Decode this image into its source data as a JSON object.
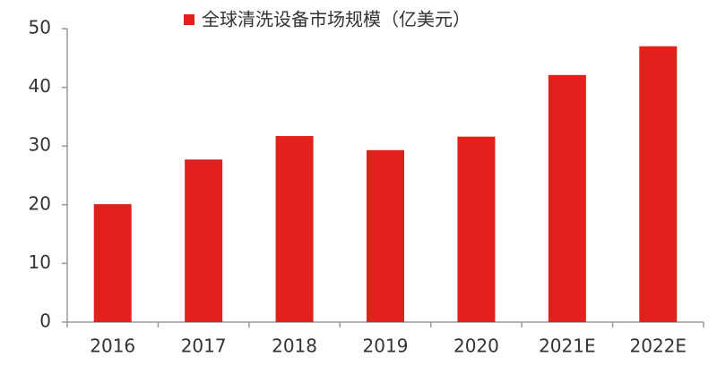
{
  "chart_data": {
    "type": "bar",
    "categories": [
      "2016",
      "2017",
      "2018",
      "2019",
      "2020",
      "2021E",
      "2022E"
    ],
    "series": [
      {
        "name": "全球清洗设备市场规模（亿美元）",
        "color": "#e2201c",
        "values": [
          20.1,
          27.7,
          31.7,
          29.3,
          31.6,
          42.1,
          47.0
        ]
      }
    ],
    "ylim": [
      0,
      50
    ],
    "yticks": [
      0,
      10,
      20,
      30,
      40,
      50
    ],
    "grid": false,
    "legend": "top"
  }
}
